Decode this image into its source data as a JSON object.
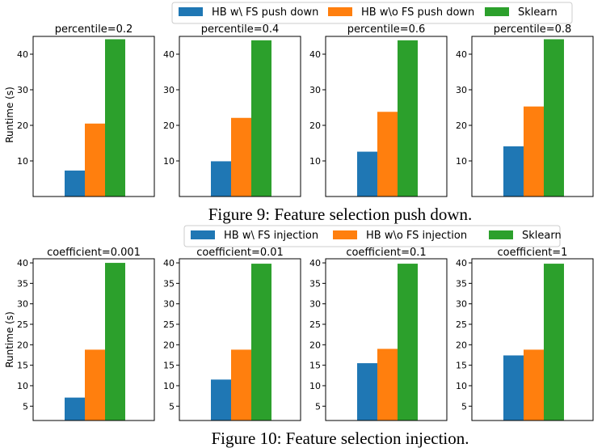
{
  "colors": {
    "series1": "#1f77b4",
    "series2": "#ff7f0e",
    "series3": "#2ca02c"
  },
  "figures": [
    {
      "caption": "Figure 9: Feature selection push down.",
      "legend": [
        "HB w\\ FS push down",
        "HB w\\o FS push down",
        "Sklearn"
      ],
      "ylabel": "Runtime (s)"
    },
    {
      "caption": "Figure 10: Feature selection injection.",
      "legend": [
        "HB w\\ FS injection",
        "HB w\\o FS injection",
        "Sklearn"
      ],
      "ylabel": "Runtime (s)"
    }
  ],
  "chart_data": [
    {
      "type": "bar",
      "title": "percentile=0.2",
      "ylabel": "Runtime (s)",
      "ylim": [
        0,
        45
      ],
      "yticks": [
        10,
        20,
        30,
        40
      ],
      "series": [
        {
          "name": "HB w\\ FS push down",
          "values": [
            7.3
          ]
        },
        {
          "name": "HB w\\o FS push down",
          "values": [
            20.5
          ]
        },
        {
          "name": "Sklearn",
          "values": [
            44.2
          ]
        }
      ]
    },
    {
      "type": "bar",
      "title": "percentile=0.4",
      "ylim": [
        0,
        45
      ],
      "yticks": [
        10,
        20,
        30,
        40
      ],
      "series": [
        {
          "name": "HB w\\ FS push down",
          "values": [
            9.9
          ]
        },
        {
          "name": "HB w\\o FS push down",
          "values": [
            22.1
          ]
        },
        {
          "name": "Sklearn",
          "values": [
            43.9
          ]
        }
      ]
    },
    {
      "type": "bar",
      "title": "percentile=0.6",
      "ylim": [
        0,
        45
      ],
      "yticks": [
        10,
        20,
        30,
        40
      ],
      "series": [
        {
          "name": "HB w\\ FS push down",
          "values": [
            12.6
          ]
        },
        {
          "name": "HB w\\o FS push down",
          "values": [
            23.8
          ]
        },
        {
          "name": "Sklearn",
          "values": [
            43.9
          ]
        }
      ]
    },
    {
      "type": "bar",
      "title": "percentile=0.8",
      "ylim": [
        0,
        45
      ],
      "yticks": [
        10,
        20,
        30,
        40
      ],
      "series": [
        {
          "name": "HB w\\ FS push down",
          "values": [
            14.1
          ]
        },
        {
          "name": "HB w\\o FS push down",
          "values": [
            25.3
          ]
        },
        {
          "name": "Sklearn",
          "values": [
            44.2
          ]
        }
      ]
    },
    {
      "type": "bar",
      "title": "coefficient=0.001",
      "ylabel": "Runtime (s)",
      "ylim": [
        1.5,
        41
      ],
      "yticks": [
        5,
        10,
        15,
        20,
        25,
        30,
        35,
        40
      ],
      "series": [
        {
          "name": "HB w\\ FS injection",
          "values": [
            7.1
          ]
        },
        {
          "name": "HB w\\o FS injection",
          "values": [
            18.8
          ]
        },
        {
          "name": "Sklearn",
          "values": [
            40.0
          ]
        }
      ]
    },
    {
      "type": "bar",
      "title": "coefficient=0.01",
      "ylim": [
        1.5,
        41
      ],
      "yticks": [
        5,
        10,
        15,
        20,
        25,
        30,
        35,
        40
      ],
      "series": [
        {
          "name": "HB w\\ FS injection",
          "values": [
            11.5
          ]
        },
        {
          "name": "HB w\\o FS injection",
          "values": [
            18.8
          ]
        },
        {
          "name": "Sklearn",
          "values": [
            39.8
          ]
        }
      ]
    },
    {
      "type": "bar",
      "title": "coefficient=0.1",
      "ylim": [
        1.5,
        41
      ],
      "yticks": [
        5,
        10,
        15,
        20,
        25,
        30,
        35,
        40
      ],
      "series": [
        {
          "name": "HB w\\ FS injection",
          "values": [
            15.5
          ]
        },
        {
          "name": "HB w\\o FS injection",
          "values": [
            19.0
          ]
        },
        {
          "name": "Sklearn",
          "values": [
            39.8
          ]
        }
      ]
    },
    {
      "type": "bar",
      "title": "coefficient=1",
      "ylim": [
        1.5,
        41
      ],
      "yticks": [
        5,
        10,
        15,
        20,
        25,
        30,
        35,
        40
      ],
      "series": [
        {
          "name": "HB w\\ FS injection",
          "values": [
            17.4
          ]
        },
        {
          "name": "HB w\\o FS injection",
          "values": [
            18.8
          ]
        },
        {
          "name": "Sklearn",
          "values": [
            39.8
          ]
        }
      ]
    }
  ]
}
